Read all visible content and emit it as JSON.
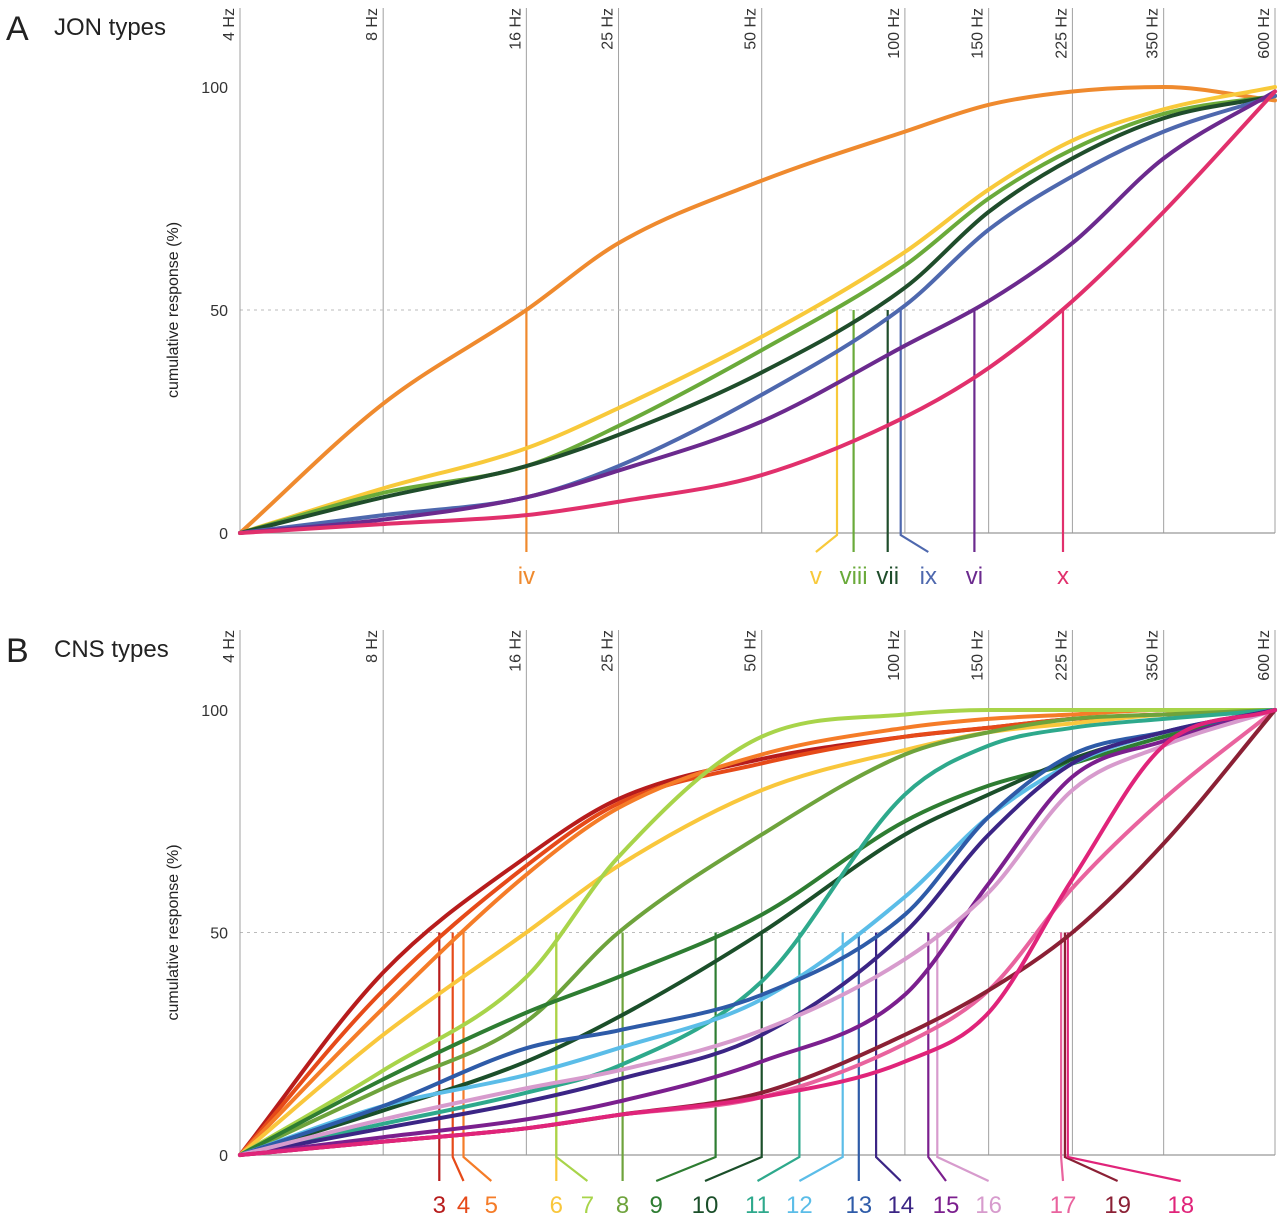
{
  "chart_data": [
    {
      "type": "line",
      "panel_letter": "A",
      "title": "JON types",
      "ylabel": "cumulative response (%)",
      "yticks": [
        0,
        50,
        100
      ],
      "ylim": [
        0,
        100
      ],
      "x_scale": "log",
      "xlim": [
        4,
        600
      ],
      "frequencies_hz": [
        4,
        8,
        16,
        25,
        50,
        100,
        150,
        225,
        350,
        600
      ],
      "frequency_labels": [
        "4 Hz",
        "8 Hz",
        "16 Hz",
        "25 Hz",
        "50 Hz",
        "100 Hz",
        "150 Hz",
        "225 Hz",
        "350 Hz",
        "600 Hz"
      ],
      "series": [
        {
          "name": "iv",
          "color": "#ef8a2e",
          "x": [
            4,
            8,
            16,
            25,
            50,
            100,
            150,
            225,
            350,
            600
          ],
          "values": [
            0,
            29,
            50,
            65,
            79,
            90,
            96,
            99,
            100,
            97
          ],
          "half_freq": 16,
          "label_freq": 16
        },
        {
          "name": "v",
          "color": "#f8c93a",
          "x": [
            4,
            8,
            16,
            25,
            50,
            100,
            150,
            225,
            350,
            600
          ],
          "values": [
            0,
            10,
            19,
            28,
            44,
            63,
            77,
            88,
            95,
            100
          ],
          "half_freq": 72,
          "label_freq": 65
        },
        {
          "name": "viii",
          "color": "#6aaa3a",
          "x": [
            4,
            8,
            16,
            25,
            50,
            100,
            150,
            225,
            350,
            600
          ],
          "values": [
            0,
            9,
            15,
            24,
            41,
            60,
            75,
            86,
            94,
            98
          ],
          "half_freq": 78,
          "label_freq": 78
        },
        {
          "name": "vii",
          "color": "#1f4d2b",
          "x": [
            4,
            8,
            16,
            25,
            50,
            100,
            150,
            225,
            350,
            600
          ],
          "values": [
            0,
            8,
            15,
            22,
            36,
            55,
            72,
            84,
            93,
            98
          ],
          "half_freq": 92,
          "label_freq": 92
        },
        {
          "name": "ix",
          "color": "#4e68ae",
          "x": [
            4,
            8,
            16,
            25,
            50,
            100,
            150,
            225,
            350,
            600
          ],
          "values": [
            0,
            4,
            8,
            15,
            31,
            51,
            68,
            80,
            90,
            98
          ],
          "half_freq": 98,
          "label_freq": 112
        },
        {
          "name": "vi",
          "color": "#6b2a8e",
          "x": [
            4,
            8,
            16,
            25,
            50,
            100,
            150,
            225,
            350,
            600
          ],
          "values": [
            0,
            3,
            8,
            14,
            25,
            42,
            52,
            65,
            84,
            99
          ],
          "half_freq": 140,
          "label_freq": 140
        },
        {
          "name": "x",
          "color": "#e1306c",
          "x": [
            4,
            8,
            16,
            25,
            50,
            100,
            150,
            225,
            350,
            600
          ],
          "values": [
            0,
            2,
            4,
            7,
            13,
            26,
            37,
            52,
            72,
            99
          ],
          "half_freq": 215,
          "label_freq": 215
        }
      ]
    },
    {
      "type": "line",
      "panel_letter": "B",
      "title": "CNS types",
      "ylabel": "cumulative response (%)",
      "yticks": [
        0,
        50,
        100
      ],
      "ylim": [
        0,
        100
      ],
      "x_scale": "log",
      "xlim": [
        4,
        600
      ],
      "frequencies_hz": [
        4,
        8,
        16,
        25,
        50,
        100,
        150,
        225,
        350,
        600
      ],
      "frequency_labels": [
        "4 Hz",
        "8 Hz",
        "16 Hz",
        "25 Hz",
        "50 Hz",
        "100 Hz",
        "150 Hz",
        "225 Hz",
        "350 Hz",
        "600 Hz"
      ],
      "series": [
        {
          "name": "3",
          "color": "#b71c1c",
          "x": [
            4,
            8,
            16,
            25,
            50,
            100,
            150,
            225,
            350,
            600
          ],
          "values": [
            0,
            41,
            67,
            80,
            89,
            94,
            96,
            98,
            99,
            100
          ],
          "half_freq": 10.5,
          "label_freq": 10.5
        },
        {
          "name": "4",
          "color": "#e64a19",
          "x": [
            4,
            8,
            16,
            25,
            50,
            100,
            150,
            225,
            350,
            600
          ],
          "values": [
            0,
            37,
            65,
            79,
            88,
            94,
            96,
            98,
            99,
            100
          ],
          "half_freq": 11.2,
          "label_freq": 11.8
        },
        {
          "name": "5",
          "color": "#f57c28",
          "x": [
            4,
            8,
            16,
            25,
            50,
            100,
            150,
            225,
            350,
            600
          ],
          "values": [
            0,
            33,
            63,
            78,
            90,
            96,
            98,
            99,
            100,
            100
          ],
          "half_freq": 11.8,
          "label_freq": 13.5
        },
        {
          "name": "6",
          "color": "#f9c73c",
          "x": [
            4,
            8,
            16,
            25,
            50,
            100,
            150,
            225,
            350,
            600
          ],
          "values": [
            0,
            27,
            50,
            65,
            82,
            91,
            95,
            97,
            99,
            100
          ],
          "half_freq": 18.5,
          "label_freq": 18.5
        },
        {
          "name": "7",
          "color": "#a8d44a",
          "x": [
            4,
            8,
            16,
            25,
            50,
            100,
            150,
            225,
            350,
            600
          ],
          "values": [
            0,
            19,
            40,
            67,
            94,
            99,
            100,
            100,
            100,
            100
          ],
          "half_freq": 18.5,
          "label_freq": 21.5
        },
        {
          "name": "8",
          "color": "#6ea33c",
          "x": [
            4,
            8,
            16,
            25,
            50,
            100,
            150,
            225,
            350,
            600
          ],
          "values": [
            0,
            15,
            30,
            50,
            72,
            90,
            95,
            98,
            99,
            100
          ],
          "half_freq": 25.5,
          "label_freq": 25.5
        },
        {
          "name": "9",
          "color": "#2e7d32",
          "x": [
            4,
            8,
            16,
            25,
            50,
            100,
            150,
            225,
            350,
            600
          ],
          "values": [
            0,
            17,
            32,
            40,
            54,
            75,
            83,
            88,
            94,
            100
          ],
          "half_freq": 40,
          "label_freq": 30
        },
        {
          "name": "10",
          "color": "#1b4f2a",
          "x": [
            4,
            8,
            16,
            25,
            50,
            100,
            150,
            225,
            350,
            600
          ],
          "values": [
            0,
            10,
            21,
            31,
            50,
            72,
            81,
            89,
            95,
            100
          ],
          "half_freq": 50,
          "label_freq": 38
        },
        {
          "name": "11",
          "color": "#2ea98c",
          "x": [
            4,
            8,
            16,
            25,
            50,
            100,
            150,
            225,
            350,
            600
          ],
          "values": [
            0,
            7,
            14,
            20,
            39,
            81,
            92,
            96,
            98,
            100
          ],
          "half_freq": 60,
          "label_freq": 49
        },
        {
          "name": "12",
          "color": "#5bbde8",
          "x": [
            4,
            8,
            16,
            25,
            50,
            100,
            150,
            225,
            350,
            600
          ],
          "values": [
            0,
            11,
            18,
            24,
            35,
            58,
            76,
            88,
            95,
            100
          ],
          "half_freq": 74,
          "label_freq": 60
        },
        {
          "name": "13",
          "color": "#2e5ba8",
          "x": [
            4,
            8,
            16,
            25,
            50,
            100,
            150,
            225,
            350,
            600
          ],
          "values": [
            0,
            11,
            24,
            28,
            36,
            54,
            76,
            90,
            95,
            100
          ],
          "half_freq": 80,
          "label_freq": 80
        },
        {
          "name": "14",
          "color": "#3b2585",
          "x": [
            4,
            8,
            16,
            25,
            50,
            100,
            150,
            225,
            350,
            600
          ],
          "values": [
            0,
            6,
            12,
            17,
            27,
            50,
            72,
            88,
            95,
            100
          ],
          "half_freq": 87,
          "label_freq": 98
        },
        {
          "name": "15",
          "color": "#7b1f8e",
          "x": [
            4,
            8,
            16,
            25,
            50,
            100,
            150,
            225,
            350,
            600
          ],
          "values": [
            0,
            4,
            8,
            12,
            21,
            36,
            61,
            85,
            93,
            100
          ],
          "half_freq": 112,
          "label_freq": 122
        },
        {
          "name": "16",
          "color": "#d79bcd",
          "x": [
            4,
            8,
            16,
            25,
            50,
            100,
            150,
            225,
            350,
            600
          ],
          "values": [
            0,
            8,
            15,
            19,
            28,
            44,
            59,
            82,
            92,
            100
          ],
          "half_freq": 117,
          "label_freq": 150
        },
        {
          "name": "17",
          "color": "#e9639e",
          "x": [
            4,
            8,
            16,
            25,
            50,
            100,
            150,
            225,
            350,
            600
          ],
          "values": [
            0,
            3,
            6,
            9,
            13,
            25,
            37,
            60,
            80,
            100
          ],
          "half_freq": 213,
          "label_freq": 215
        },
        {
          "name": "19",
          "color": "#8b2035",
          "x": [
            4,
            8,
            16,
            25,
            50,
            100,
            150,
            225,
            350,
            600
          ],
          "values": [
            0,
            3,
            6,
            9,
            14,
            27,
            37,
            50,
            70,
            100
          ],
          "half_freq": 217,
          "label_freq": 280
        },
        {
          "name": "18",
          "color": "#e0247a",
          "x": [
            4,
            8,
            16,
            25,
            50,
            100,
            150,
            225,
            350,
            600
          ],
          "values": [
            0,
            3,
            6,
            9,
            13,
            21,
            32,
            62,
            92,
            100
          ],
          "half_freq": 220,
          "label_freq": 380
        }
      ]
    }
  ]
}
